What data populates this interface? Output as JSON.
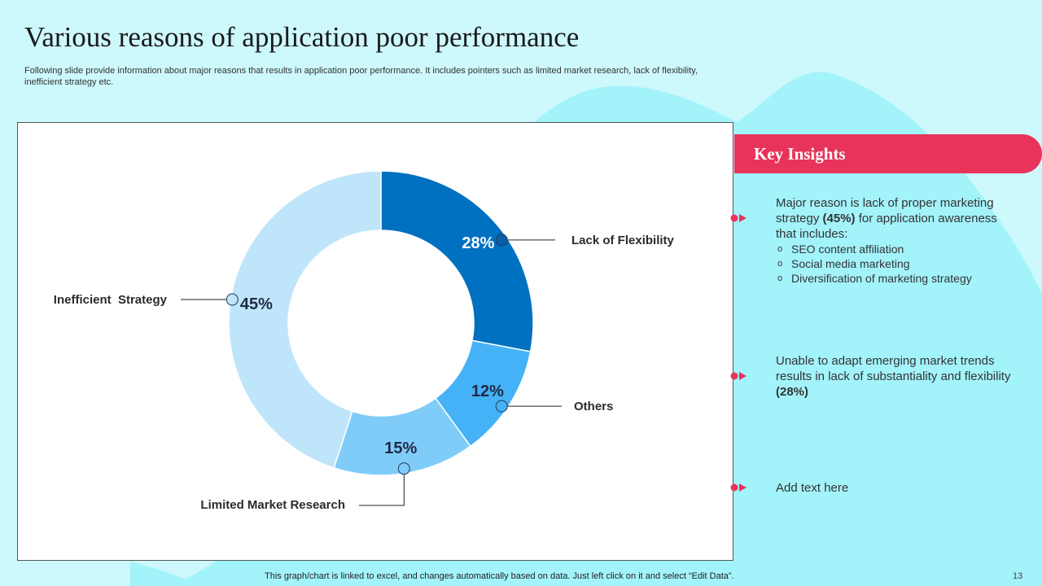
{
  "colors": {
    "background": "#cdf8fc",
    "blob": "#a3f3fb",
    "accent": "#e8345a",
    "segment_lack_of_flexibility": "#0070c0",
    "segment_others": "#45b2f7",
    "segment_limited_market_research": "#80ccf9",
    "segment_inefficient_strategy": "#bfe5fa"
  },
  "slide": {
    "title": "Various reasons of application poor performance",
    "subtitle": "Following slide provide information about major reasons that results in application poor performance. It includes pointers such as limited market research, lack of flexibility, inefficient strategy etc.",
    "footer": "This graph/chart is linked to excel,  and changes automatically based on data. Just left click on it and select “Edit Data”.",
    "page_number": "13"
  },
  "chart_data": {
    "type": "pie",
    "variant": "donut",
    "title": "",
    "series": [
      {
        "name": "Lack of Flexibility",
        "value": 28,
        "label": "28%"
      },
      {
        "name": "Others",
        "value": 12,
        "label": "12%"
      },
      {
        "name": "Limited Market Research",
        "value": 15,
        "label": "15%"
      },
      {
        "name": "Inefficient  Strategy",
        "value": 45,
        "label": "45%"
      }
    ],
    "start_angle": "12 o'clock",
    "direction": "clockwise"
  },
  "insights": {
    "header": "Key Insights",
    "items": [
      {
        "text_before": "Major reason is lack of proper marketing strategy ",
        "highlight": "(45%)",
        "text_after": " for application awareness that includes:",
        "sub_items": [
          "SEO content affiliation",
          "Social media marketing",
          "Diversification of marketing strategy"
        ]
      },
      {
        "text_before": "Unable to adapt emerging market trends results in lack of substantiality  and flexibility ",
        "highlight": "(28%)",
        "text_after": ""
      },
      {
        "text_before": "Add text here",
        "highlight": "",
        "text_after": ""
      }
    ]
  }
}
